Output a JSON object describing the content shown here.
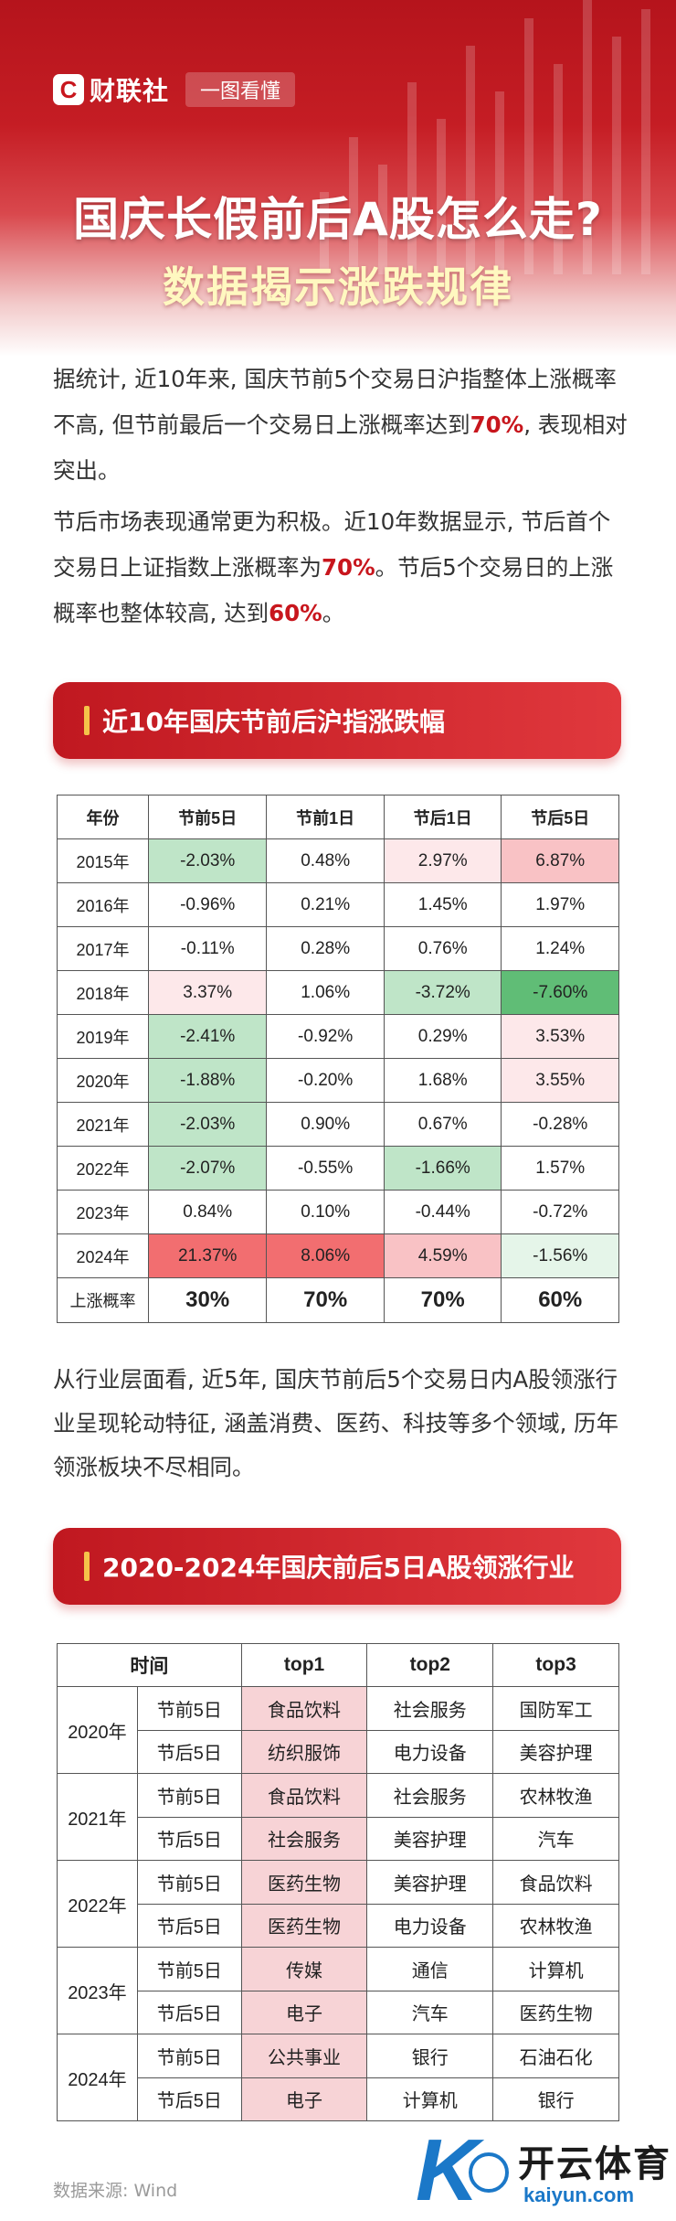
{
  "header": {
    "brand": "财联社",
    "brand_mark": "C",
    "tag": "一图看懂",
    "title_line1": "国庆长假前后A股怎么走?",
    "title_line2": "数据揭示涨跌规律"
  },
  "intro": {
    "p1_a": "据统计, 近10年来, 国庆节前5个交易日沪指整体上涨概率不高, 但节前最后一个交易日上涨概率达到",
    "p1_hl": "70%",
    "p1_b": ", 表现相对突出。",
    "p2_a": "节后市场表现通常更为积极。近10年数据显示, 节后首个交易日上证指数上涨概率为",
    "p2_hl1": "70%",
    "p2_b": "。节后5个交易日的上涨概率也整体较高, 达到",
    "p2_hl2": "60%",
    "p2_c": "。"
  },
  "section1": {
    "title": "近10年国庆节前后沪指涨跌幅"
  },
  "table1": {
    "headers": [
      "年份",
      "节前5日",
      "节前1日",
      "节后1日",
      "节后5日"
    ],
    "rows": [
      {
        "year": "2015年",
        "c": [
          "-2.03%",
          "0.48%",
          "2.97%",
          "6.87%"
        ]
      },
      {
        "year": "2016年",
        "c": [
          "-0.96%",
          "0.21%",
          "1.45%",
          "1.97%"
        ]
      },
      {
        "year": "2017年",
        "c": [
          "-0.11%",
          "0.28%",
          "0.76%",
          "1.24%"
        ]
      },
      {
        "year": "2018年",
        "c": [
          "3.37%",
          "1.06%",
          "-3.72%",
          "-7.60%"
        ]
      },
      {
        "year": "2019年",
        "c": [
          "-2.41%",
          "-0.92%",
          "0.29%",
          "3.53%"
        ]
      },
      {
        "year": "2020年",
        "c": [
          "-1.88%",
          "-0.20%",
          "1.68%",
          "3.55%"
        ]
      },
      {
        "year": "2021年",
        "c": [
          "-2.03%",
          "0.90%",
          "0.67%",
          "-0.28%"
        ]
      },
      {
        "year": "2022年",
        "c": [
          "-2.07%",
          "-0.55%",
          "-1.66%",
          "1.57%"
        ]
      },
      {
        "year": "2023年",
        "c": [
          "0.84%",
          "0.10%",
          "-0.44%",
          "-0.72%"
        ]
      },
      {
        "year": "2024年",
        "c": [
          "21.37%",
          "8.06%",
          "4.59%",
          "-1.56%"
        ]
      }
    ],
    "summary": {
      "label": "上涨概率",
      "c": [
        "30%",
        "70%",
        "70%",
        "60%"
      ]
    },
    "colors": {
      "up_strong": "#f26e70",
      "up_mid": "#f9c2c5",
      "up_light": "#fde8ea",
      "down_strong": "#60bd76",
      "down_mid": "#bfe5c8",
      "down_light": "#e5f5e9"
    }
  },
  "para3": "从行业层面看, 近5年, 国庆节前后5个交易日内A股领涨行业呈现轮动特征, 涵盖消费、医药、科技等多个领域, 历年领涨板块不尽相同。",
  "section2": {
    "title": "2020-2024年国庆前后5日A股领涨行业"
  },
  "table2": {
    "headers": [
      "时间",
      "top1",
      "top2",
      "top3"
    ],
    "groups": [
      {
        "year": "2020年",
        "rows": [
          {
            "period": "节前5日",
            "c": [
              "食品饮料",
              "社会服务",
              "国防军工"
            ]
          },
          {
            "period": "节后5日",
            "c": [
              "纺织服饰",
              "电力设备",
              "美容护理"
            ]
          }
        ]
      },
      {
        "year": "2021年",
        "rows": [
          {
            "period": "节前5日",
            "c": [
              "食品饮料",
              "社会服务",
              "农林牧渔"
            ]
          },
          {
            "period": "节后5日",
            "c": [
              "社会服务",
              "美容护理",
              "汽车"
            ]
          }
        ]
      },
      {
        "year": "2022年",
        "rows": [
          {
            "period": "节前5日",
            "c": [
              "医药生物",
              "美容护理",
              "食品饮料"
            ]
          },
          {
            "period": "节后5日",
            "c": [
              "医药生物",
              "电力设备",
              "农林牧渔"
            ]
          }
        ]
      },
      {
        "year": "2023年",
        "rows": [
          {
            "period": "节前5日",
            "c": [
              "传媒",
              "通信",
              "计算机"
            ]
          },
          {
            "period": "节后5日",
            "c": [
              "电子",
              "汽车",
              "医药生物"
            ]
          }
        ]
      },
      {
        "year": "2024年",
        "rows": [
          {
            "period": "节前5日",
            "c": [
              "公共事业",
              "银行",
              "石油石化"
            ]
          },
          {
            "period": "节后5日",
            "c": [
              "电子",
              "计算机",
              "银行"
            ]
          }
        ]
      }
    ]
  },
  "footer": {
    "source": "数据来源: Wind",
    "watermark_name": "开云体育",
    "watermark_url": "kaiyun.com",
    "watermark_letter": "K"
  }
}
